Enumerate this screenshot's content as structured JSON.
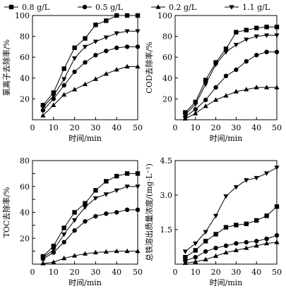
{
  "legend": [
    {
      "label": "0.8 g/L",
      "marker": "square"
    },
    {
      "label": "0.5 g/L",
      "marker": "circle"
    },
    {
      "label": "0.2 g/L",
      "marker": "triangle-up"
    },
    {
      "label": "1.1 g/L",
      "marker": "triangle-down"
    }
  ],
  "chart_data": [
    {
      "type": "line",
      "xlabel": "时间/min",
      "ylabel": "氯离子去除率/%",
      "xlim": [
        0,
        50
      ],
      "ylim": [
        0,
        100
      ],
      "xticks": [
        0,
        10,
        20,
        30,
        40,
        50
      ],
      "yticks": [
        20,
        40,
        60,
        80,
        100
      ],
      "ytick_labels": [
        "20",
        "40",
        "60",
        "80",
        "100"
      ],
      "x": [
        5,
        10,
        15,
        20,
        25,
        30,
        35,
        40,
        45,
        50
      ],
      "series": [
        {
          "name": "0.8 g/L",
          "marker": "square",
          "values": [
            14,
            26,
            49,
            69,
            78,
            91,
            95,
            100,
            100,
            100
          ]
        },
        {
          "name": "0.5 g/L",
          "marker": "circle",
          "values": [
            9,
            20,
            33,
            46,
            55,
            62,
            66,
            69,
            70,
            70
          ]
        },
        {
          "name": "0.2 g/L",
          "marker": "triangle-up",
          "values": [
            4,
            14,
            24,
            29,
            34,
            39,
            44,
            48,
            51,
            51
          ]
        },
        {
          "name": "1.1 g/L",
          "marker": "triangle-down",
          "values": [
            12,
            23,
            39,
            59,
            70,
            75,
            79,
            83,
            85,
            85
          ]
        }
      ]
    },
    {
      "type": "line",
      "xlabel": "时间/min",
      "ylabel": "COD去除率/%",
      "xlim": [
        0,
        50
      ],
      "ylim": [
        0,
        100
      ],
      "xticks": [
        0,
        10,
        20,
        30,
        40,
        50
      ],
      "yticks": [
        20,
        40,
        60,
        80,
        100
      ],
      "ytick_labels": [
        "20",
        "40",
        "60",
        "80",
        "100"
      ],
      "x": [
        5,
        10,
        15,
        20,
        25,
        30,
        35,
        40,
        45,
        50
      ],
      "series": [
        {
          "name": "0.8 g/L",
          "marker": "square",
          "values": [
            7,
            17,
            38,
            55,
            68,
            84,
            86,
            88,
            89,
            89
          ]
        },
        {
          "name": "0.5 g/L",
          "marker": "circle",
          "values": [
            3,
            10,
            19,
            31,
            42,
            48,
            56,
            62,
            65,
            65
          ]
        },
        {
          "name": "0.2 g/L",
          "marker": "triangle-up",
          "values": [
            1,
            6,
            13,
            19,
            23,
            27,
            29,
            31,
            31,
            31
          ]
        },
        {
          "name": "1.1 g/L",
          "marker": "triangle-down",
          "values": [
            5,
            15,
            34,
            53,
            65,
            72,
            77,
            80,
            81,
            81
          ]
        }
      ]
    },
    {
      "type": "line",
      "xlabel": "时间/min",
      "ylabel": "TOC去除率/%",
      "xlim": [
        0,
        50
      ],
      "ylim": [
        0,
        80
      ],
      "xticks": [
        0,
        10,
        20,
        30,
        40,
        50
      ],
      "yticks": [
        10,
        20,
        30,
        40,
        50,
        60,
        70,
        80
      ],
      "ytick_labels": [
        "",
        "20",
        "",
        "40",
        "",
        "60",
        "",
        "80"
      ],
      "x": [
        5,
        10,
        15,
        20,
        25,
        30,
        35,
        40,
        45,
        50
      ],
      "series": [
        {
          "name": "0.8 g/L",
          "marker": "square",
          "values": [
            6,
            14,
            28,
            40,
            47,
            57,
            64,
            68,
            70,
            70
          ]
        },
        {
          "name": "0.5 g/L",
          "marker": "circle",
          "values": [
            4,
            9,
            17,
            26,
            33,
            37,
            39,
            40,
            42,
            42
          ]
        },
        {
          "name": "0.2 g/L",
          "marker": "triangle-up",
          "values": [
            0.5,
            1.5,
            4.5,
            6.5,
            8,
            9,
            9.5,
            10,
            10,
            10
          ]
        },
        {
          "name": "1.1 g/L",
          "marker": "triangle-down",
          "values": [
            5,
            11,
            23,
            34,
            44,
            51,
            54,
            57,
            60,
            60
          ]
        }
      ]
    },
    {
      "type": "line",
      "xlabel": "时间/min",
      "ylabel": "总铁溶出质量浓度/(mg·L⁻¹)",
      "xlim": [
        0,
        50
      ],
      "ylim": [
        0,
        4.5
      ],
      "xticks": [
        0,
        10,
        20,
        30,
        40,
        50
      ],
      "yticks": [
        1.5,
        3.0,
        4.5
      ],
      "ytick_labels": [
        "1.5",
        "3.0",
        "4.5"
      ],
      "x": [
        5,
        10,
        15,
        20,
        25,
        30,
        35,
        40,
        45,
        50
      ],
      "series": [
        {
          "name": "0.8 g/L",
          "marker": "square",
          "values": [
            0.3,
            0.6,
            1.0,
            1.3,
            1.6,
            1.7,
            1.75,
            1.9,
            2.1,
            2.5
          ]
        },
        {
          "name": "0.5 g/L",
          "marker": "circle",
          "values": [
            0.15,
            0.3,
            0.55,
            0.7,
            0.8,
            0.9,
            0.95,
            1.0,
            1.1,
            1.25
          ]
        },
        {
          "name": "0.2 g/L",
          "marker": "triangle-up",
          "values": [
            0.05,
            0.1,
            0.2,
            0.35,
            0.5,
            0.6,
            0.7,
            0.8,
            0.9,
            0.95
          ]
        },
        {
          "name": "1.1 g/L",
          "marker": "triangle-down",
          "values": [
            0.55,
            0.9,
            1.4,
            2.1,
            2.95,
            3.35,
            3.65,
            3.75,
            3.95,
            4.2
          ]
        }
      ]
    }
  ]
}
